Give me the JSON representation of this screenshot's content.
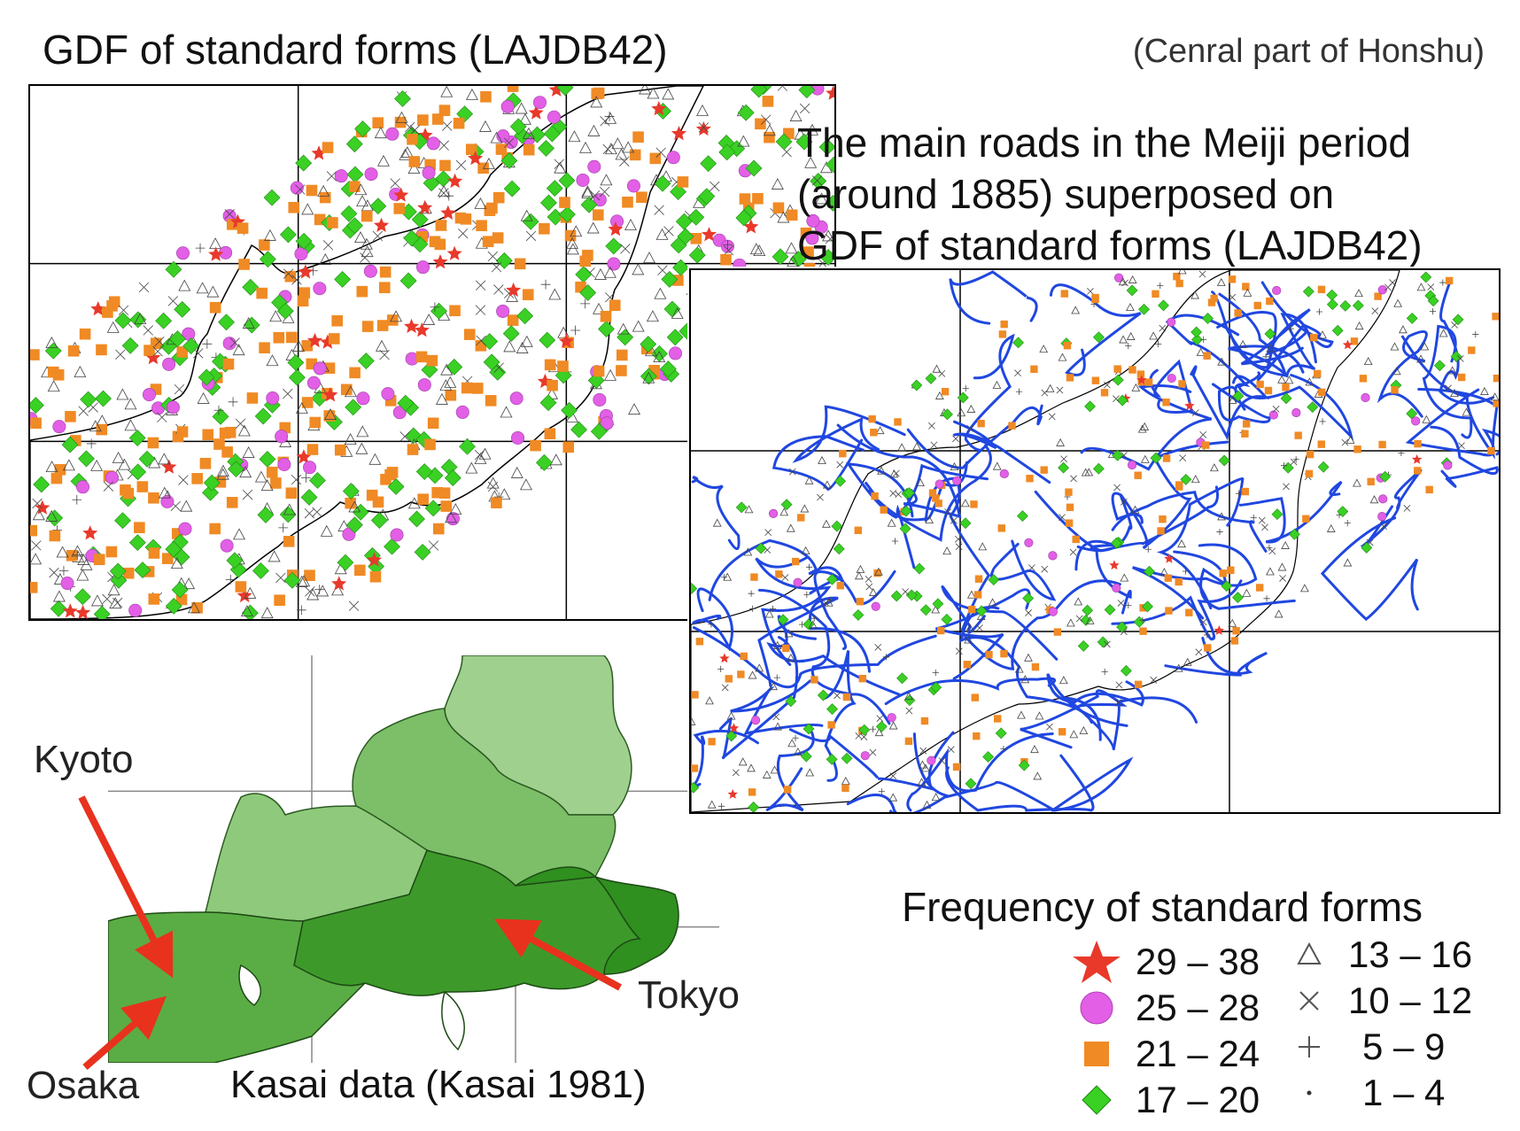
{
  "figure": {
    "title_main": "GDF of  standard forms (LAJDB42)",
    "title_region": "(Cenral part of Honshu)"
  },
  "roads_map": {
    "title_lines": [
      "The main roads in the Meiji period",
      "(around 1885) superposed on",
      "GDF of standard forms (LAJDB42)"
    ]
  },
  "kasai_map": {
    "caption": "Kasai data (Kasai 1981)",
    "cities": {
      "kyoto": "Kyoto",
      "osaka": "Osaka",
      "tokyo": "Tokyo"
    }
  },
  "legend": {
    "title": "Frequency of standard forms",
    "items": [
      {
        "symbol": "star",
        "label": "29 – 38",
        "color": "#e8392b"
      },
      {
        "symbol": "circle",
        "label": "25 – 28",
        "color": "#e25fe6"
      },
      {
        "symbol": "square",
        "label": "21 – 24",
        "color": "#f08a24"
      },
      {
        "symbol": "diamond",
        "label": "17 – 20",
        "color": "#3ad024"
      },
      {
        "symbol": "triangle",
        "label": "13 – 16",
        "color": "#555555"
      },
      {
        "symbol": "cross",
        "label": "10 – 12",
        "color": "#555555"
      },
      {
        "symbol": "plus",
        "label": "5 – 9",
        "color": "#555555"
      },
      {
        "symbol": "dot",
        "label": "1 – 4",
        "color": "#333333"
      }
    ]
  },
  "colors": {
    "road": "#2047e0",
    "arrow": "#e8321e",
    "kasai_dark": "#2f8f1f",
    "kasai_mid": "#4aa534",
    "kasai_light": "#9fd08e"
  }
}
